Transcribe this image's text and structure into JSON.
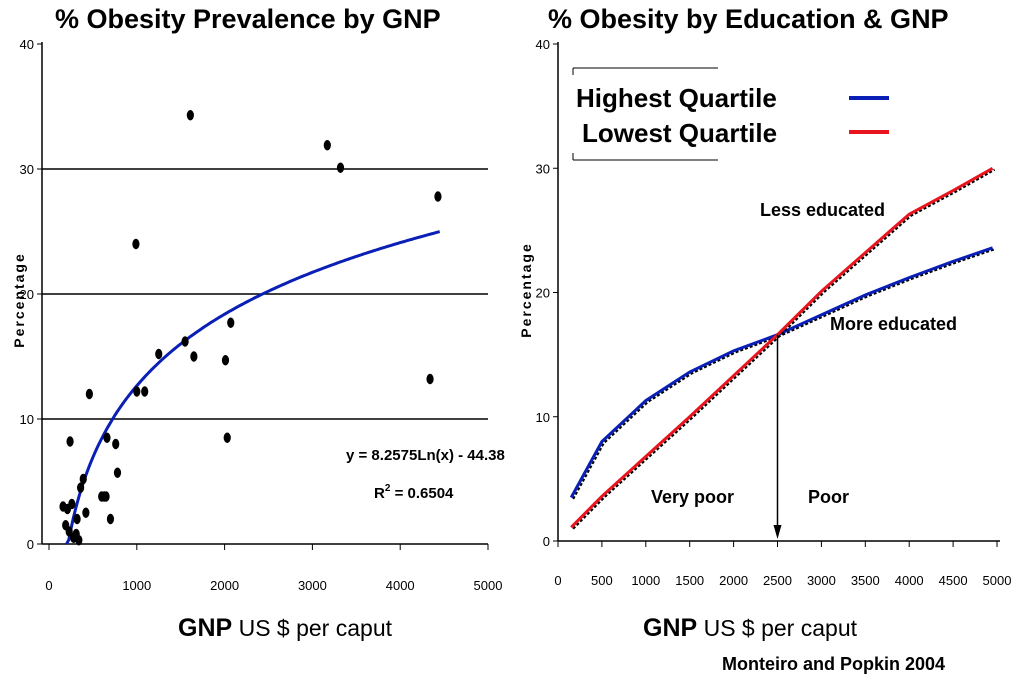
{
  "charts_header": {
    "left_title": "% Obesity Prevalence by GNP",
    "right_title": "% Obesity by Education & GNP",
    "left_xcaption_bold": "GNP",
    "left_xcaption_rest": " US $ per caput",
    "right_xcaption_bold": "GNP",
    "right_xcaption_rest": " US $ per caput",
    "citation": "Monteiro and Popkin 2004"
  },
  "colors": {
    "highest_quartile": "#0a1fb5",
    "lowest_quartile": "#e8141e",
    "points": "#000000",
    "trend": "#0a1fb5"
  },
  "chart_data": [
    {
      "type": "scatter",
      "title": "% Obesity Prevalence by GNP",
      "ylabel": "Percentage",
      "xlabel": "GNP US $ per caput",
      "xlim": [
        0,
        5000
      ],
      "ylim": [
        0,
        40
      ],
      "xticks": [
        0,
        1000,
        2000,
        3000,
        4000,
        5000
      ],
      "yticks": [
        0,
        10,
        20,
        30,
        40
      ],
      "grid": "horizontal lines at 10, 20, 30",
      "points": [
        [
          160,
          3.0
        ],
        [
          190,
          1.5
        ],
        [
          210,
          2.8
        ],
        [
          230,
          1.0
        ],
        [
          240,
          8.2
        ],
        [
          260,
          3.2
        ],
        [
          280,
          0.5
        ],
        [
          310,
          0.8
        ],
        [
          320,
          2.0
        ],
        [
          340,
          0.3
        ],
        [
          360,
          4.5
        ],
        [
          390,
          5.2
        ],
        [
          420,
          2.5
        ],
        [
          460,
          12.0
        ],
        [
          600,
          3.8
        ],
        [
          630,
          3.8
        ],
        [
          650,
          3.8
        ],
        [
          660,
          8.5
        ],
        [
          700,
          2.0
        ],
        [
          760,
          8.0
        ],
        [
          780,
          5.7
        ],
        [
          990,
          24.0
        ],
        [
          1000,
          12.2
        ],
        [
          1090,
          12.2
        ],
        [
          1250,
          15.2
        ],
        [
          1550,
          16.2
        ],
        [
          1610,
          34.3
        ],
        [
          1650,
          15.0
        ],
        [
          2010,
          14.7
        ],
        [
          2030,
          8.5
        ],
        [
          2070,
          17.7
        ],
        [
          3170,
          31.9
        ],
        [
          3320,
          30.1
        ],
        [
          4340,
          13.2
        ],
        [
          4430,
          27.8
        ]
      ],
      "trend": {
        "equation_label": "y = 8.2575Ln(x) - 44.38",
        "r2_label": "R",
        "r2_superscript": "2",
        "r2_value_label": " = 0.6504",
        "a": 8.2575,
        "b": -44.38,
        "x_range": [
          200,
          4450
        ]
      }
    },
    {
      "type": "line",
      "title": "% Obesity by Education & GNP",
      "ylabel": "Percentage",
      "xlabel": "GNP US $ per caput",
      "xlim": [
        0,
        5000
      ],
      "ylim": [
        0,
        40
      ],
      "xticks": [
        0,
        500,
        1000,
        1500,
        2000,
        2500,
        3000,
        3500,
        4000,
        4500,
        5000
      ],
      "yticks": [
        0,
        10,
        20,
        30,
        40
      ],
      "legend": {
        "position": "top-left",
        "entries": [
          "Highest Quartile",
          "Lowest Quartile"
        ]
      },
      "series": [
        {
          "name": "Highest Quartile",
          "color": "#0a1fb5",
          "x": [
            150,
            500,
            1000,
            1500,
            2000,
            2500,
            3000,
            3500,
            4000,
            4500,
            4950
          ],
          "values": [
            3.5,
            8.0,
            11.3,
            13.6,
            15.3,
            16.6,
            18.2,
            19.8,
            21.2,
            22.5,
            23.6
          ]
        },
        {
          "name": "Lowest Quartile",
          "color": "#e8141e",
          "x": [
            150,
            500,
            1000,
            1500,
            2000,
            2500,
            3000,
            3500,
            4000,
            4500,
            4950
          ],
          "values": [
            1.1,
            3.6,
            6.8,
            10.0,
            13.3,
            16.6,
            20.1,
            23.2,
            26.3,
            28.2,
            30.0
          ]
        }
      ],
      "annotations": {
        "less_educated": "Less educated",
        "more_educated": "More educated",
        "very_poor": "Very poor",
        "poor": "Poor",
        "divider_x": 2500
      }
    }
  ]
}
